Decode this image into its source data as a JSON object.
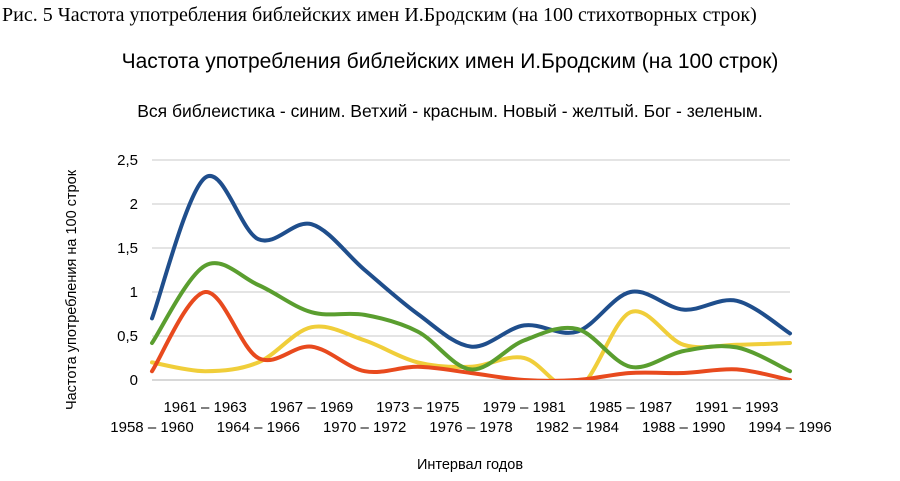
{
  "figure_caption": "Рис. 5 Частота употребления библейских имен И.Бродским (на 100 стихотворных строк)",
  "chart_data": {
    "type": "line",
    "title": "Частота употребления библейских имен И.Бродским (на 100 строк)",
    "subtitle": "Вся библеистика - синим. Ветхий - красным. Новый  - желтый. Бог - зеленым.",
    "xlabel": "Интервал годов",
    "ylabel": "Частота употребления на 100 строк",
    "ylim": [
      0,
      2.5
    ],
    "y_ticks": [
      "0",
      "0,5",
      "1",
      "1,5",
      "2",
      "2,5"
    ],
    "categories": [
      "1958 – 1960",
      "1961 – 1963",
      "1964 – 1966",
      "1967 – 1969",
      "1970 – 1972",
      "1973 – 1975",
      "1976 – 1978",
      "1979 – 1981",
      "1982 – 1984",
      "1985 – 1987",
      "1988 – 1990",
      "1991 – 1993",
      "1994 – 1996"
    ],
    "grid": "horizontal",
    "series": [
      {
        "color": "#1f4e8c",
        "values": [
          0.7,
          2.3,
          1.6,
          1.77,
          1.25,
          0.75,
          0.38,
          0.62,
          0.55,
          1.0,
          0.8,
          0.9,
          0.53
        ]
      },
      {
        "color": "#f0ce3a",
        "values": [
          0.2,
          0.1,
          0.2,
          0.6,
          0.45,
          0.2,
          0.15,
          0.25,
          -0.1,
          0.77,
          0.4,
          0.4,
          0.42
        ]
      },
      {
        "color": "#e84a1e",
        "values": [
          0.1,
          1.0,
          0.25,
          0.38,
          0.1,
          0.15,
          0.08,
          0.0,
          0.0,
          0.08,
          0.08,
          0.12,
          0.0
        ]
      },
      {
        "color": "#5a9e2f",
        "values": [
          0.42,
          1.3,
          1.08,
          0.77,
          0.74,
          0.55,
          0.12,
          0.45,
          0.58,
          0.15,
          0.33,
          0.37,
          0.1
        ]
      }
    ]
  }
}
